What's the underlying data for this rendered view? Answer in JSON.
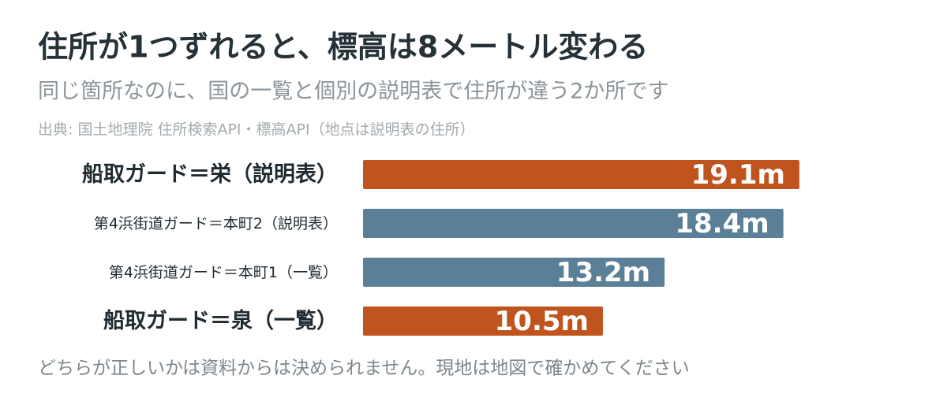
{
  "chart_data": {
    "type": "bar",
    "orientation": "horizontal",
    "title": "住所が1つずれると、標高は8メートル変わる",
    "subtitle": "同じ箇所なのに、国の一覧と個別の説明表で住所が違う2か所です",
    "source": "出典: 国土地理院 住所検索API・標高API（地点は説明表の住所）",
    "categories": [
      "船取ガード＝栄（説明表）",
      "第4浜街道ガード＝本町2（説明表）",
      "第4浜街道ガード＝本町1（一覧）",
      "船取ガード＝泉（一覧）"
    ],
    "values": [
      19.1,
      18.4,
      13.2,
      10.5
    ],
    "value_labels": [
      "19.1m",
      "18.4m",
      "13.2m",
      "10.5m"
    ],
    "colors": [
      "#c0541f",
      "#5b7f96",
      "#5b7f96",
      "#c0541f"
    ],
    "note": "どちらが正しいかは資料からは決められません。現地は地図で確かめてください"
  }
}
